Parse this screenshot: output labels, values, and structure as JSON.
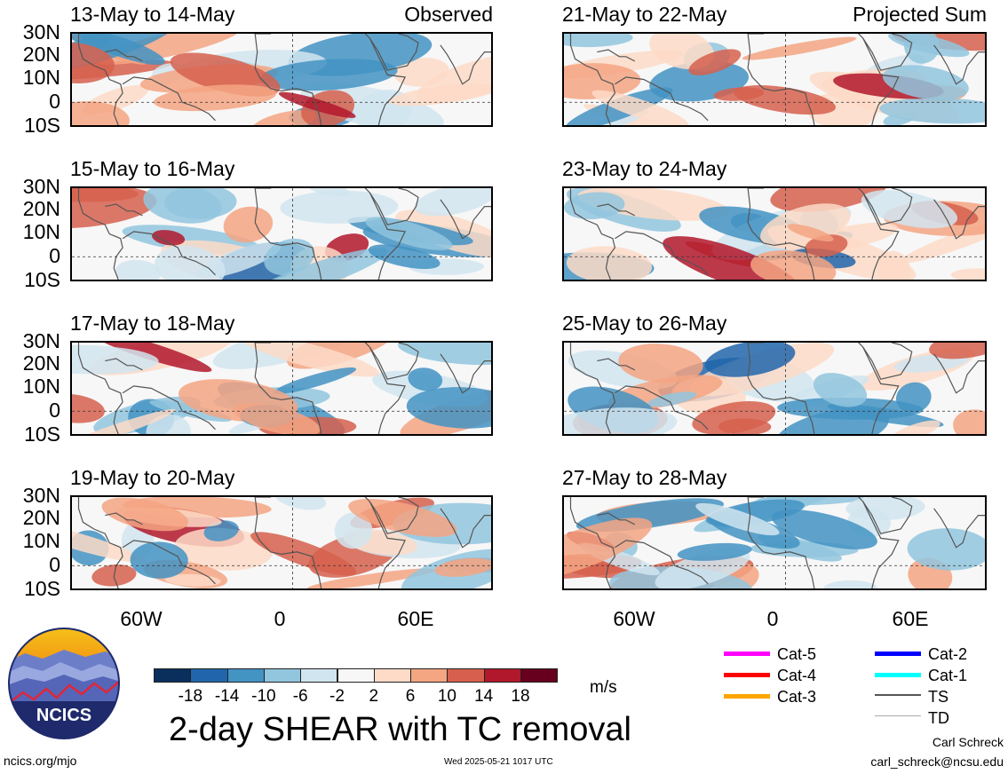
{
  "panels": [
    {
      "title": "13-May to 14-May",
      "tag": "Observed"
    },
    {
      "title": "15-May to 16-May",
      "tag": ""
    },
    {
      "title": "17-May to 18-May",
      "tag": ""
    },
    {
      "title": "19-May to 20-May",
      "tag": ""
    },
    {
      "title": "21-May to 22-May",
      "tag": "Projected Sum"
    },
    {
      "title": "23-May to 24-May",
      "tag": ""
    },
    {
      "title": "25-May to 26-May",
      "tag": ""
    },
    {
      "title": "27-May to 28-May",
      "tag": ""
    }
  ],
  "lat_labels": [
    "30N",
    "20N",
    "10N",
    "0",
    "10S"
  ],
  "lon_labels": [
    "60W",
    "0",
    "60E"
  ],
  "colorbar": {
    "ticks": [
      "-18",
      "-14",
      "-10",
      "-6",
      "-2",
      "2",
      "6",
      "10",
      "14",
      "18"
    ],
    "colors": [
      "#0a2f5c",
      "#2166ac",
      "#4393c3",
      "#92c5de",
      "#d1e5f0",
      "#f7f7f7",
      "#fddbc7",
      "#f4a582",
      "#d6604d",
      "#b2182b",
      "#67001f"
    ],
    "units": "m/s"
  },
  "legend": [
    {
      "label": "Cat-5",
      "color": "#ff00ff"
    },
    {
      "label": "Cat-4",
      "color": "#ff0000"
    },
    {
      "label": "Cat-3",
      "color": "#ffa500"
    },
    {
      "label": "Cat-2",
      "color": "#0000ff"
    },
    {
      "label": "Cat-1",
      "color": "#00ffff"
    },
    {
      "label": "TS",
      "color": "#555555"
    },
    {
      "label": "TD",
      "color": "#aaaaaa"
    }
  ],
  "main_title": "2-day SHEAR with TC removal",
  "logo": {
    "text": "NCICS"
  },
  "footer": {
    "site": "ncics.org/mjo",
    "timestamp": "Wed 2025-05-21 1017 UTC",
    "author": "Carl Schreck",
    "email": "carl_schreck@ncsu.edu"
  }
}
